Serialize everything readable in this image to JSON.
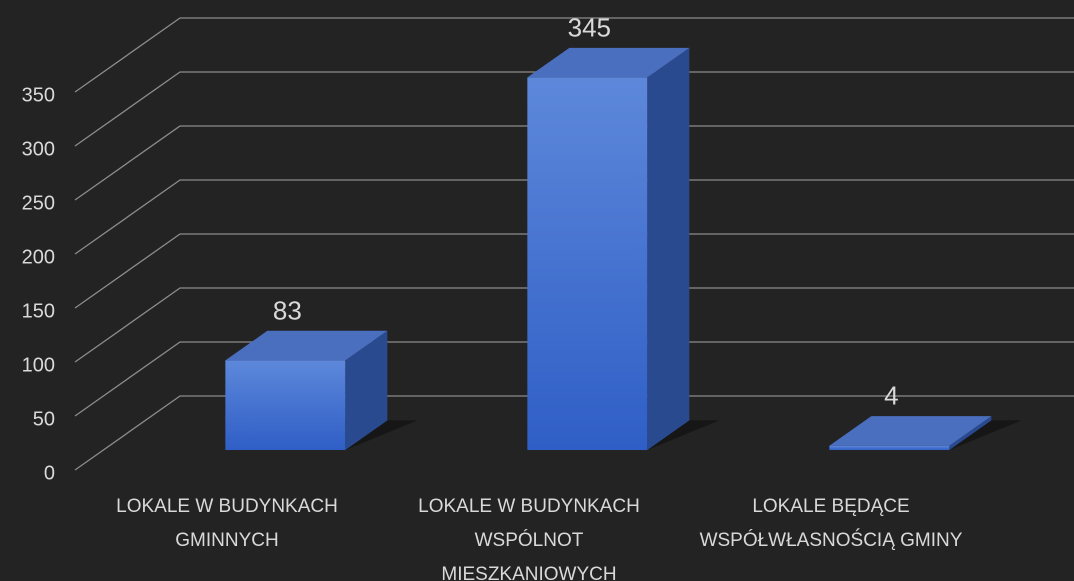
{
  "chart_data": {
    "type": "bar3d",
    "categories": [
      "LOKALE W BUDYNKACH GMINNYCH",
      "LOKALE W BUDYNKACH WSPÓLNOT MIESZKANIOWYCH",
      "LOKALE BĘDĄCE WSPÓŁWŁASNOŚCIĄ GMINY"
    ],
    "values": [
      83,
      345,
      4
    ],
    "color": "#4472c4",
    "ylim": [
      0,
      350
    ],
    "yticks": [
      0,
      50,
      100,
      150,
      200,
      250,
      300,
      350
    ],
    "grid": true
  }
}
